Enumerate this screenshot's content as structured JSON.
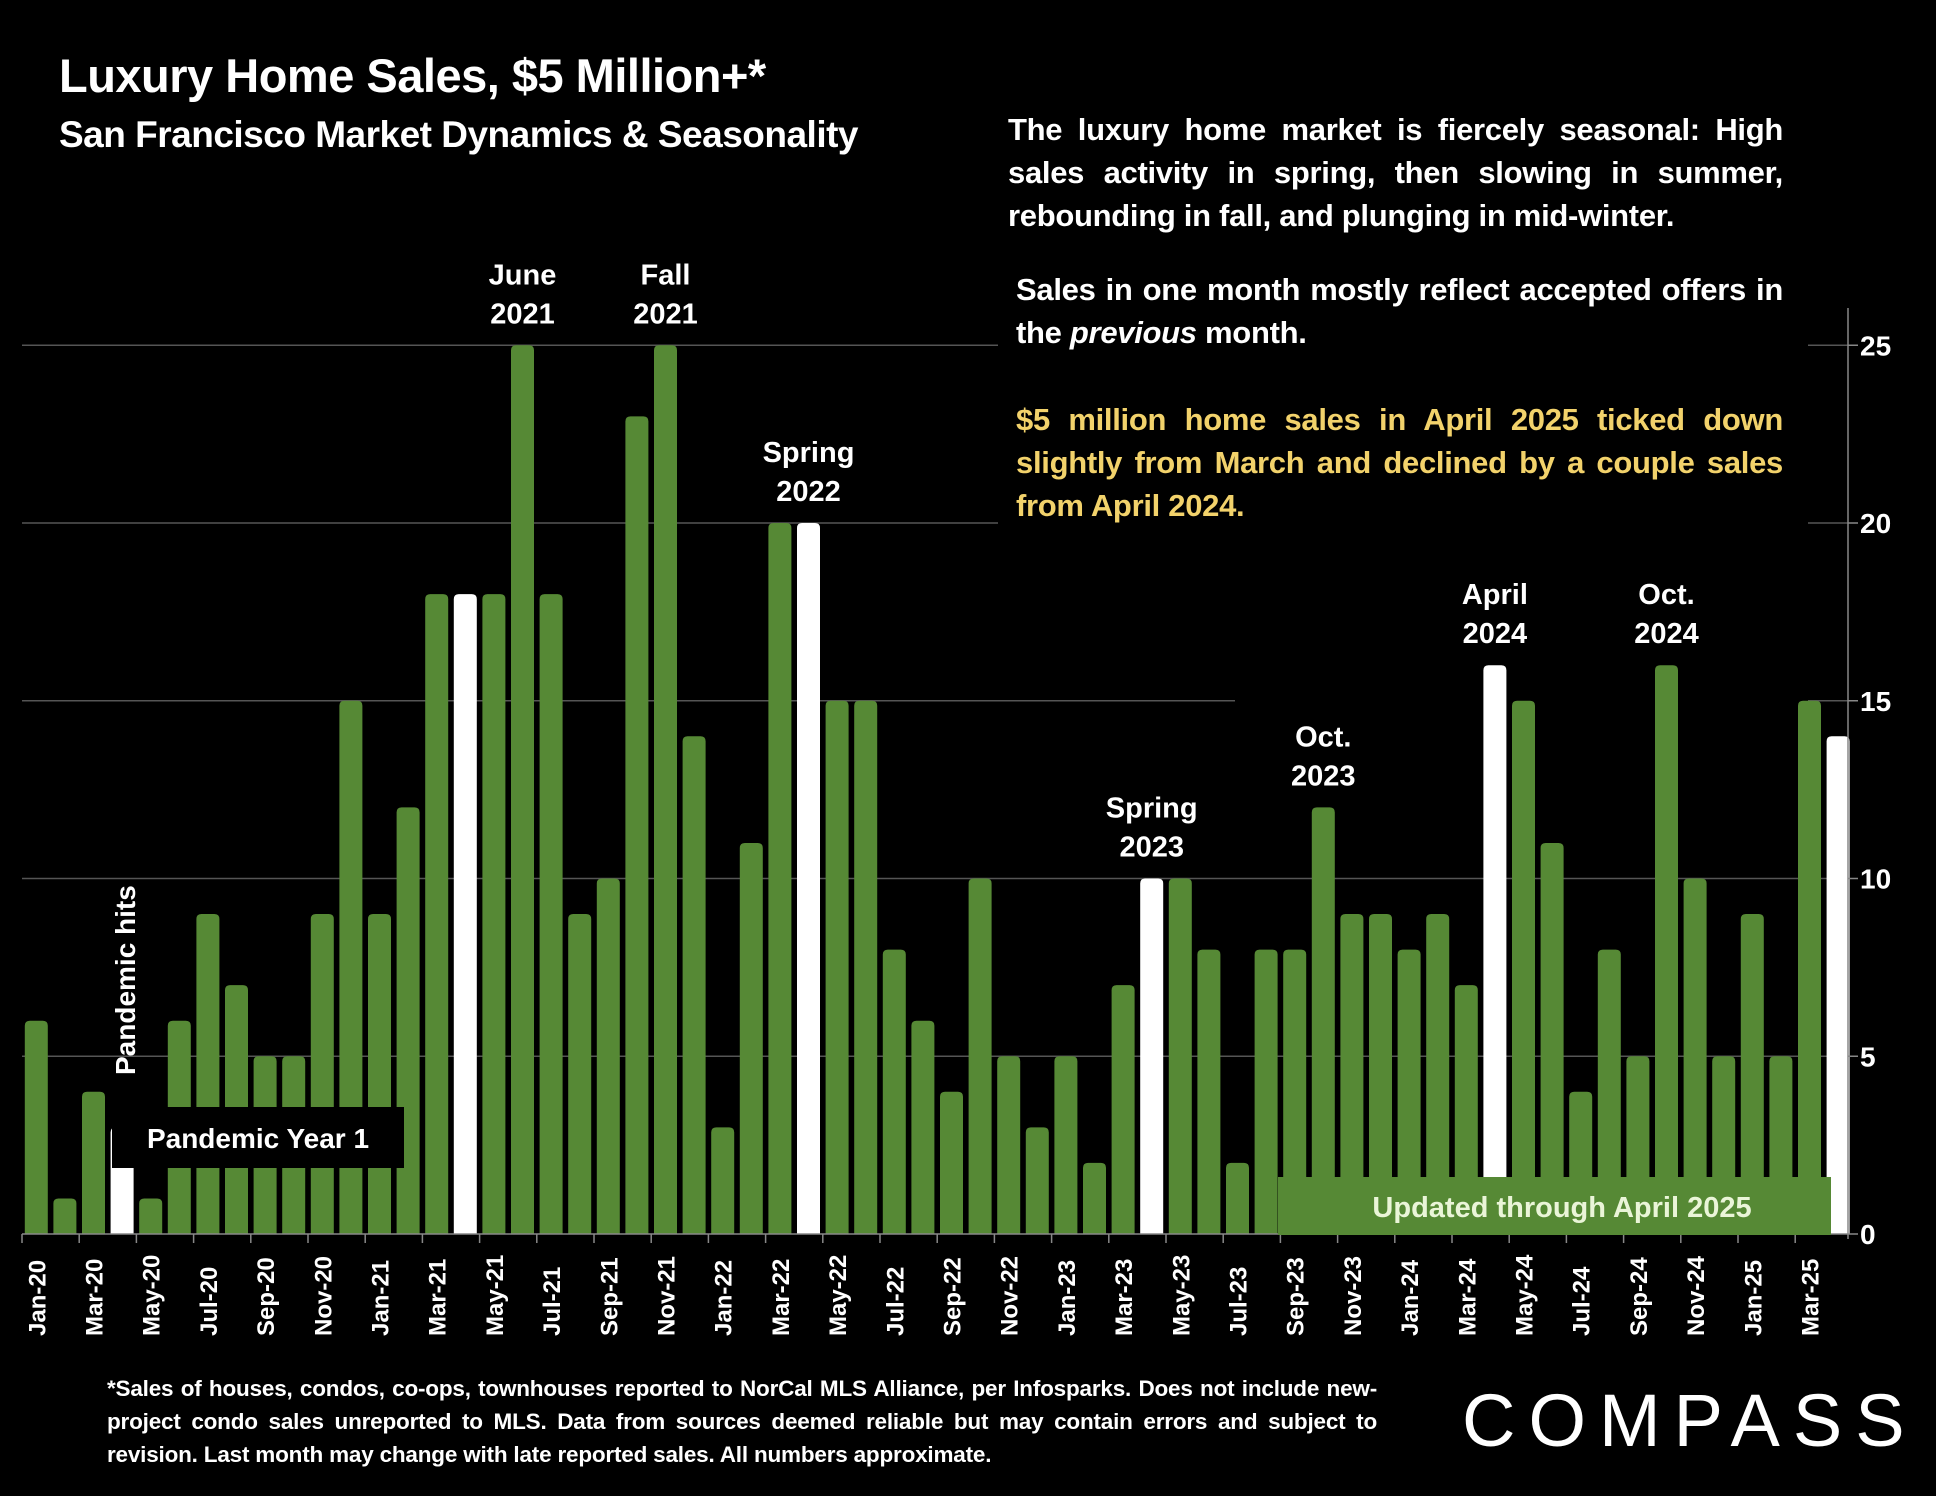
{
  "header": {
    "title": "Luxury Home Sales, $5 Million+*",
    "subtitle": "San Francisco Market Dynamics & Seasonality"
  },
  "commentary": {
    "p1": "The luxury home market is fiercely seasonal:  High sales activity in spring, then slowing in summer, rebounding in fall, and plunging in mid-winter.",
    "p2_before": "Sales in one month mostly reflect accepted offers in the ",
    "p2_italic": "previous",
    "p2_after": " month.",
    "p3": "$5 million home sales in April 2025 ticked down slightly from March and declined by a couple sales from April 2024."
  },
  "colors": {
    "background": "#000000",
    "bar_default": "#568935",
    "bar_highlight": "#ffffff",
    "highlight_text": "#f2d26b",
    "gridline": "#555555"
  },
  "footnote": "*Sales of houses, condos, co-ops, townhouses reported to NorCal MLS Alliance, per Infosparks. Does not include new-project condo sales unreported to MLS. Data from sources deemed reliable but may contain errors and subject to revision. Last month may change with late reported sales. All numbers approximate.",
  "logo": "COMPASS",
  "chart_data": {
    "type": "bar",
    "title": "Luxury Home Sales, $5 Million+*",
    "xlabel": "",
    "ylabel": "",
    "ylim": [
      0,
      25
    ],
    "yticks": [
      0,
      5,
      10,
      15,
      20,
      25
    ],
    "y_axis_side": "right",
    "grid": true,
    "categories": [
      "Jan-20",
      "Feb-20",
      "Mar-20",
      "Apr-20",
      "May-20",
      "Jun-20",
      "Jul-20",
      "Aug-20",
      "Sep-20",
      "Oct-20",
      "Nov-20",
      "Dec-20",
      "Jan-21",
      "Feb-21",
      "Mar-21",
      "Apr-21",
      "May-21",
      "Jun-21",
      "Jul-21",
      "Aug-21",
      "Sep-21",
      "Oct-21",
      "Nov-21",
      "Dec-21",
      "Jan-22",
      "Feb-22",
      "Mar-22",
      "Apr-22",
      "May-22",
      "Jun-22",
      "Jul-22",
      "Aug-22",
      "Sep-22",
      "Oct-22",
      "Nov-22",
      "Dec-22",
      "Jan-23",
      "Feb-23",
      "Mar-23",
      "Apr-23",
      "May-23",
      "Jun-23",
      "Jul-23",
      "Aug-23",
      "Sep-23",
      "Oct-23",
      "Nov-23",
      "Dec-23",
      "Jan-24",
      "Feb-24",
      "Mar-24",
      "Apr-24",
      "May-24",
      "Jun-24",
      "Jul-24",
      "Aug-24",
      "Sep-24",
      "Oct-24",
      "Nov-24",
      "Dec-24",
      "Jan-25",
      "Feb-25",
      "Mar-25",
      "Apr-25"
    ],
    "x_tick_labels_shown_every": 2,
    "values": [
      6,
      1,
      4,
      3,
      1,
      6,
      9,
      7,
      5,
      5,
      9,
      15,
      9,
      12,
      18,
      18,
      18,
      25,
      18,
      9,
      10,
      23,
      25,
      14,
      3,
      11,
      20,
      20,
      15,
      15,
      8,
      6,
      4,
      10,
      5,
      3,
      5,
      2,
      7,
      10,
      10,
      8,
      2,
      8,
      8,
      12,
      9,
      9,
      8,
      9,
      7,
      16,
      15,
      11,
      4,
      8,
      5,
      16,
      10,
      5,
      9,
      5,
      15,
      14
    ],
    "highlighted": [
      "Apr-20",
      "Apr-21",
      "Apr-22",
      "Apr-23",
      "Apr-24",
      "Apr-25"
    ],
    "annotations": [
      {
        "text": [
          "June",
          "2021"
        ],
        "at": "Jun-21"
      },
      {
        "text": [
          "Fall",
          "2021"
        ],
        "at": "Nov-21"
      },
      {
        "text": [
          "Spring",
          "2022"
        ],
        "at": "Apr-22"
      },
      {
        "text": [
          "Spring",
          "2023"
        ],
        "at": "Apr-23"
      },
      {
        "text": [
          "Oct.",
          "2023"
        ],
        "at": "Oct-23"
      },
      {
        "text": [
          "April",
          "2024"
        ],
        "at": "Apr-24"
      },
      {
        "text": [
          "Oct.",
          "2024"
        ],
        "at": "Oct-24"
      }
    ],
    "pandemic_hits_label": "Pandemic hits",
    "pandemic_year_label": "Pandemic Year 1",
    "updated_label": "Updated through April 2025"
  }
}
